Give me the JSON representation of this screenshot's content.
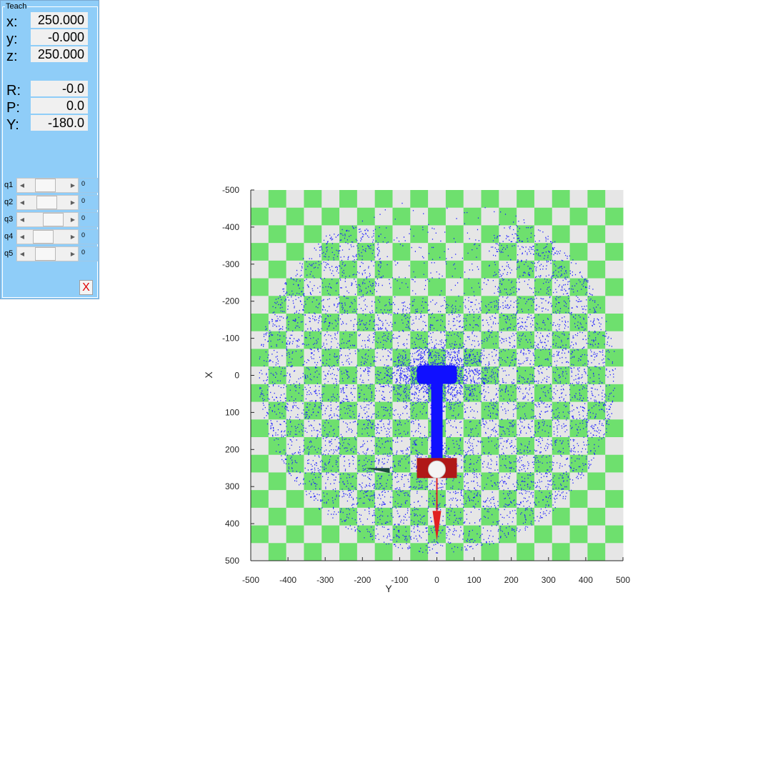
{
  "teach_panel": {
    "title": "Teach",
    "pose": [
      {
        "label": "x:",
        "value": "250.000"
      },
      {
        "label": "y:",
        "value": "-0.000"
      },
      {
        "label": "z:",
        "value": "250.000"
      },
      {
        "label": "R:",
        "value": "-0.0"
      },
      {
        "label": "P:",
        "value": "0.0"
      },
      {
        "label": "Y:",
        "value": "-180.0"
      }
    ],
    "joints": [
      {
        "label": "q1",
        "value": "0",
        "slider_fraction": 0.4
      },
      {
        "label": "q2",
        "value": "0",
        "slider_fraction": 0.45
      },
      {
        "label": "q3",
        "value": "0",
        "slider_fraction": 0.8
      },
      {
        "label": "q4",
        "value": "0",
        "slider_fraction": 0.3
      },
      {
        "label": "q5",
        "value": "0",
        "slider_fraction": 0.4
      }
    ],
    "close_label": "X"
  },
  "chart_data": {
    "type": "scatter",
    "xlabel": "Y",
    "ylabel": "X",
    "xlim": [
      -500,
      500
    ],
    "ylim": [
      -500,
      500
    ],
    "y_axis_reversed": true,
    "x_ticks": [
      "-500",
      "-400",
      "-300",
      "-200",
      "-100",
      "0",
      "100",
      "200",
      "300",
      "400",
      "500"
    ],
    "y_ticks": [
      "-500",
      "-400",
      "-300",
      "-200",
      "-100",
      "0",
      "100",
      "200",
      "300",
      "400",
      "500"
    ],
    "floor": "checkerboard",
    "floor_colors": [
      "#e6e6e6",
      "#6ee06e"
    ],
    "point_color": "#1a1aff",
    "workspace": {
      "reach_radius": 480,
      "base_at": [
        0,
        0
      ]
    },
    "robot": {
      "base_position": [
        0,
        0
      ],
      "end_effector_position": [
        0,
        250
      ],
      "arm_color": "#1010ff",
      "gripper_color": "#b01818",
      "arrow_color": "#e02020"
    }
  }
}
